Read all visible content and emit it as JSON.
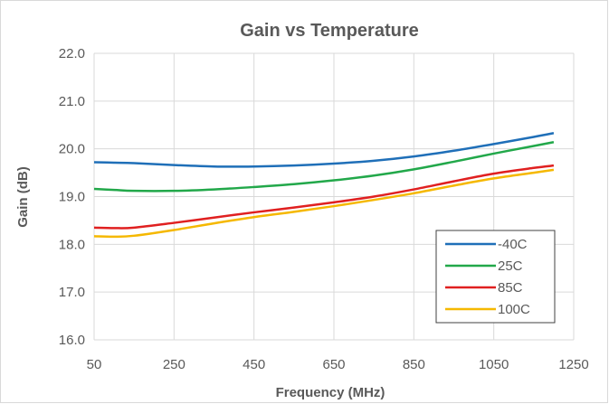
{
  "chart_data": {
    "type": "line",
    "title": "Gain vs Temperature",
    "xlabel": "Frequency (MHz)",
    "ylabel": "Gain (dB)",
    "xlim": [
      50,
      1250
    ],
    "ylim": [
      16.0,
      22.0
    ],
    "x_ticks": [
      "50",
      "250",
      "450",
      "650",
      "850",
      "1050",
      "1250"
    ],
    "y_ticks": [
      "16.0",
      "17.0",
      "18.0",
      "19.0",
      "20.0",
      "21.0",
      "22.0"
    ],
    "grid": true,
    "legend_position": "bottom-right",
    "x": [
      50,
      100,
      150,
      250,
      350,
      450,
      550,
      650,
      750,
      850,
      950,
      1050,
      1150,
      1200
    ],
    "series": [
      {
        "name": "-40C",
        "color": "#1f6fb8",
        "values": [
          19.72,
          19.71,
          19.7,
          19.66,
          19.63,
          19.63,
          19.65,
          19.69,
          19.75,
          19.84,
          19.96,
          20.1,
          20.25,
          20.33
        ]
      },
      {
        "name": "25C",
        "color": "#22a84a",
        "values": [
          19.16,
          19.14,
          19.12,
          19.12,
          19.15,
          19.2,
          19.26,
          19.34,
          19.44,
          19.57,
          19.73,
          19.9,
          20.06,
          20.14
        ]
      },
      {
        "name": "85C",
        "color": "#e02020",
        "values": [
          18.35,
          18.34,
          18.35,
          18.45,
          18.56,
          18.67,
          18.77,
          18.88,
          19.0,
          19.15,
          19.32,
          19.48,
          19.6,
          19.65
        ]
      },
      {
        "name": "100C",
        "color": "#f5b800",
        "values": [
          18.17,
          18.16,
          18.18,
          18.3,
          18.44,
          18.57,
          18.68,
          18.8,
          18.93,
          19.07,
          19.23,
          19.38,
          19.5,
          19.56
        ]
      }
    ]
  }
}
